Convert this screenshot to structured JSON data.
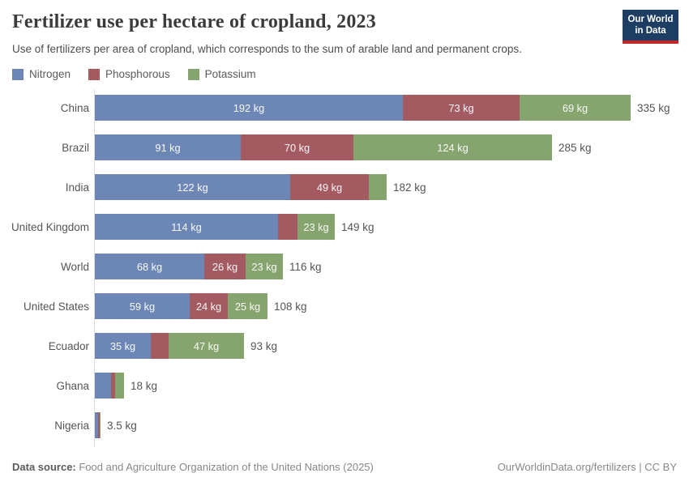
{
  "header": {
    "title": "Fertilizer use per hectare of cropland, 2023",
    "subtitle": "Use of fertilizers per area of cropland, which corresponds to the sum of arable land and permanent crops.",
    "logo_line1": "Our World",
    "logo_line2": "in Data",
    "logo_bg": "#1d3d63",
    "logo_accent": "#c0282d"
  },
  "legend": {
    "items": [
      {
        "label": "Nitrogen",
        "color": "#6c87b6"
      },
      {
        "label": "Phosphorous",
        "color": "#a45a61"
      },
      {
        "label": "Potassium",
        "color": "#86a46e"
      }
    ]
  },
  "chart_data": {
    "type": "bar",
    "orientation": "horizontal",
    "stacked": true,
    "unit": "kg",
    "xlim": [
      0,
      335
    ],
    "grid": false,
    "legend_position": "top-left",
    "series_names": [
      "Nitrogen",
      "Phosphorous",
      "Potassium"
    ],
    "colors": {
      "nitrogen": "#6c87b6",
      "phosphorous": "#a45a61",
      "potassium": "#86a46e"
    },
    "rows": [
      {
        "category": "China",
        "values": [
          192,
          73,
          69
        ],
        "segment_labels": [
          "192 kg",
          "73 kg",
          "69 kg"
        ],
        "total": 335,
        "total_label": "335 kg"
      },
      {
        "category": "Brazil",
        "values": [
          91,
          70,
          124
        ],
        "segment_labels": [
          "91 kg",
          "70 kg",
          "124 kg"
        ],
        "total": 285,
        "total_label": "285 kg"
      },
      {
        "category": "India",
        "values": [
          122,
          49,
          11
        ],
        "segment_labels": [
          "122 kg",
          "49 kg",
          ""
        ],
        "total": 182,
        "total_label": "182 kg"
      },
      {
        "category": "United Kingdom",
        "values": [
          114,
          12,
          23
        ],
        "segment_labels": [
          "114 kg",
          "",
          "23 kg"
        ],
        "total": 149,
        "total_label": "149 kg"
      },
      {
        "category": "World",
        "values": [
          68,
          26,
          23
        ],
        "segment_labels": [
          "68 kg",
          "26 kg",
          "23 kg"
        ],
        "total": 116,
        "total_label": "116 kg"
      },
      {
        "category": "United States",
        "values": [
          59,
          24,
          25
        ],
        "segment_labels": [
          "59 kg",
          "24 kg",
          "25 kg"
        ],
        "total": 108,
        "total_label": "108 kg"
      },
      {
        "category": "Ecuador",
        "values": [
          35,
          11,
          47
        ],
        "segment_labels": [
          "35 kg",
          "",
          "47 kg"
        ],
        "total": 93,
        "total_label": "93 kg"
      },
      {
        "category": "Ghana",
        "values": [
          10,
          2.5,
          5.5
        ],
        "segment_labels": [
          "",
          "",
          ""
        ],
        "total": 18,
        "total_label": "18 kg"
      },
      {
        "category": "Nigeria",
        "values": [
          2,
          1,
          0.5
        ],
        "segment_labels": [
          "",
          "",
          ""
        ],
        "total": 3.5,
        "total_label": "3.5 kg"
      }
    ]
  },
  "footer": {
    "datasource_label": "Data source:",
    "datasource_text": " Food and Agriculture Organization of the United Nations (2025)",
    "right_text": "OurWorldinData.org/fertilizers | CC BY"
  }
}
